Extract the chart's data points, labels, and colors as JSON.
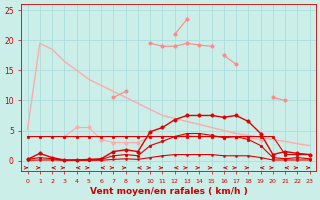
{
  "x": [
    0,
    1,
    2,
    3,
    4,
    5,
    6,
    7,
    8,
    9,
    10,
    11,
    12,
    13,
    14,
    15,
    16,
    17,
    18,
    19,
    20,
    21,
    22,
    23
  ],
  "series": [
    {
      "name": "diagonal_decreasing",
      "color": "#ffaaaa",
      "lw": 1.0,
      "marker": null,
      "y": [
        5.2,
        19.5,
        18.5,
        16.5,
        15.0,
        13.5,
        12.5,
        11.5,
        10.5,
        9.5,
        8.5,
        7.5,
        7.0,
        6.5,
        6.0,
        5.5,
        5.0,
        4.5,
        4.2,
        3.8,
        3.5,
        3.2,
        2.8,
        2.5
      ]
    },
    {
      "name": "high_flat_with_markers",
      "color": "#ff8888",
      "lw": 0.8,
      "marker": "o",
      "markersize": 2.5,
      "y": [
        null,
        null,
        null,
        null,
        null,
        null,
        null,
        null,
        null,
        null,
        19.5,
        19.0,
        19.0,
        19.5,
        19.2,
        19.0,
        null,
        null,
        null,
        null,
        null,
        null,
        null,
        null
      ]
    },
    {
      "name": "spike_line",
      "color": "#ff8888",
      "lw": 0.8,
      "marker": "o",
      "markersize": 2.5,
      "y": [
        null,
        null,
        null,
        null,
        null,
        null,
        null,
        null,
        null,
        null,
        null,
        null,
        21.0,
        23.5,
        null,
        null,
        null,
        null,
        null,
        null,
        null,
        null,
        null,
        null
      ]
    },
    {
      "name": "mid_bump",
      "color": "#ff8888",
      "lw": 0.8,
      "marker": "o",
      "markersize": 2.5,
      "y": [
        null,
        null,
        null,
        null,
        null,
        null,
        null,
        null,
        null,
        null,
        null,
        null,
        null,
        null,
        null,
        null,
        17.5,
        16.0,
        null,
        null,
        null,
        null,
        null,
        null
      ]
    },
    {
      "name": "right_spike",
      "color": "#ff8888",
      "lw": 0.8,
      "marker": "o",
      "markersize": 2.5,
      "y": [
        null,
        null,
        null,
        null,
        null,
        null,
        null,
        null,
        null,
        null,
        null,
        null,
        null,
        null,
        null,
        null,
        null,
        null,
        null,
        null,
        10.5,
        10.0,
        null,
        null
      ]
    },
    {
      "name": "small_bump_left",
      "color": "#ff8888",
      "lw": 0.8,
      "marker": "o",
      "markersize": 2.5,
      "y": [
        null,
        null,
        null,
        null,
        null,
        null,
        null,
        10.5,
        11.5,
        null,
        null,
        null,
        null,
        null,
        null,
        null,
        null,
        null,
        null,
        null,
        null,
        null,
        null,
        null
      ]
    },
    {
      "name": "low_flat_light",
      "color": "#ffaaaa",
      "lw": 0.8,
      "marker": "o",
      "markersize": 2.5,
      "y": [
        null,
        null,
        null,
        4.0,
        5.5,
        5.5,
        3.5,
        3.0,
        3.0,
        3.0,
        4.0,
        4.0,
        4.0,
        4.2,
        4.0,
        4.0,
        3.8,
        3.8,
        3.8,
        3.5,
        null,
        null,
        null,
        null
      ]
    },
    {
      "name": "red_main_hump",
      "color": "#dd0000",
      "lw": 1.0,
      "marker": "o",
      "markersize": 2.5,
      "y": [
        0.2,
        1.2,
        0.5,
        0.1,
        0.1,
        0.2,
        0.3,
        1.5,
        1.8,
        1.5,
        4.8,
        5.5,
        6.8,
        7.5,
        7.5,
        7.5,
        7.2,
        7.5,
        6.5,
        4.5,
        1.0,
        1.5,
        1.2,
        1.0
      ]
    },
    {
      "name": "red_mid_flat",
      "color": "#dd0000",
      "lw": 0.8,
      "marker": "o",
      "markersize": 2.0,
      "y": [
        4.0,
        4.0,
        4.0,
        4.0,
        4.0,
        4.0,
        4.0,
        4.0,
        4.0,
        4.0,
        4.0,
        4.0,
        4.0,
        4.0,
        4.0,
        4.0,
        4.0,
        4.0,
        4.0,
        4.0,
        4.0,
        1.0,
        1.0,
        1.0
      ]
    },
    {
      "name": "red_low_hump",
      "color": "#dd0000",
      "lw": 0.8,
      "marker": "o",
      "markersize": 2.0,
      "y": [
        0.2,
        0.5,
        0.3,
        0.05,
        0.1,
        0.1,
        0.2,
        0.8,
        1.0,
        0.8,
        2.5,
        3.2,
        4.0,
        4.5,
        4.5,
        4.2,
        3.8,
        4.0,
        3.5,
        2.5,
        0.5,
        0.3,
        0.5,
        0.3
      ]
    },
    {
      "name": "red_baseline",
      "color": "#dd0000",
      "lw": 0.8,
      "marker": "o",
      "markersize": 1.5,
      "y": [
        0.05,
        0.1,
        0.1,
        0.05,
        0.05,
        0.05,
        0.05,
        0.2,
        0.3,
        0.2,
        0.5,
        0.8,
        1.0,
        1.0,
        1.0,
        1.0,
        0.8,
        0.8,
        0.8,
        0.5,
        0.1,
        0.1,
        0.1,
        0.1
      ]
    }
  ],
  "xlabel": "Vent moyen/en rafales ( km/h )",
  "ylim": [
    -1.8,
    26
  ],
  "xlim": [
    -0.5,
    23.5
  ],
  "yticks": [
    0,
    5,
    10,
    15,
    20,
    25
  ],
  "xticks": [
    0,
    1,
    2,
    3,
    4,
    5,
    6,
    7,
    8,
    9,
    10,
    11,
    12,
    13,
    14,
    15,
    16,
    17,
    18,
    19,
    20,
    21,
    22,
    23
  ],
  "bg_color": "#cceee8",
  "grid_color": "#aadddd",
  "tick_color": "#cc0000",
  "label_color": "#cc0000"
}
